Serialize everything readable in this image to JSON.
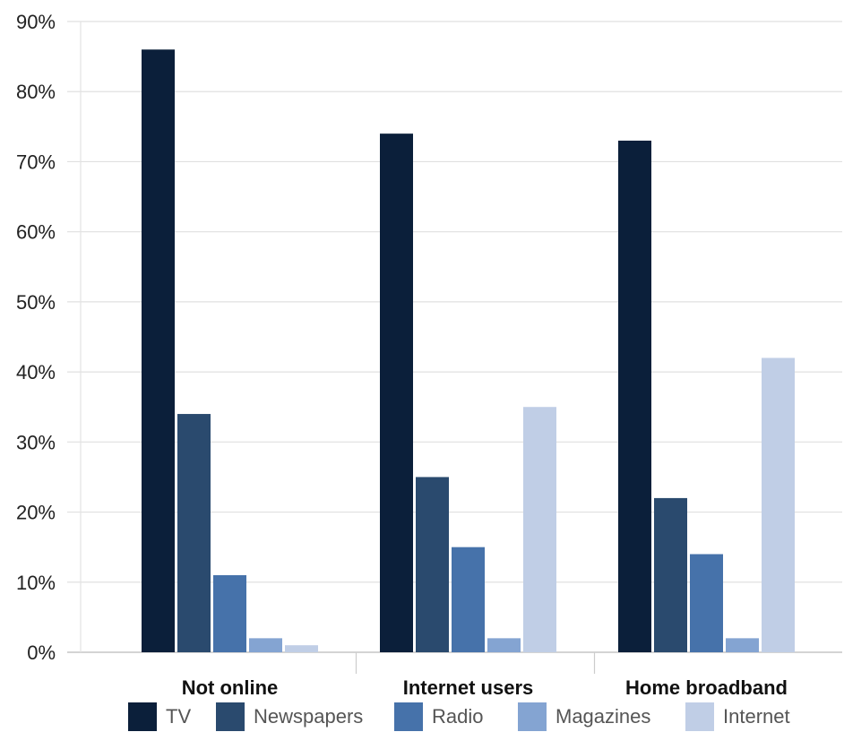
{
  "chart_data": {
    "type": "bar",
    "title": "",
    "xlabel": "",
    "ylabel": "",
    "ylim": [
      0,
      90
    ],
    "y_ticks": [
      "0%",
      "10%",
      "20%",
      "30%",
      "40%",
      "50%",
      "60%",
      "70%",
      "80%",
      "90%"
    ],
    "grid": "horizontal",
    "legend_position": "bottom",
    "categories": [
      "Not online",
      "Internet users",
      "Home broadband"
    ],
    "series": [
      {
        "name": "TV",
        "color": "#0b1f3a",
        "values": [
          86,
          74,
          73
        ]
      },
      {
        "name": "Newspapers",
        "color": "#2a4a6e",
        "values": [
          34,
          25,
          22
        ]
      },
      {
        "name": "Radio",
        "color": "#4672aa",
        "values": [
          11,
          15,
          14
        ]
      },
      {
        "name": "Magazines",
        "color": "#84a4d2",
        "values": [
          2,
          2,
          2
        ]
      },
      {
        "name": "Internet",
        "color": "#c0cee6",
        "values": [
          1,
          35,
          42
        ]
      }
    ]
  }
}
